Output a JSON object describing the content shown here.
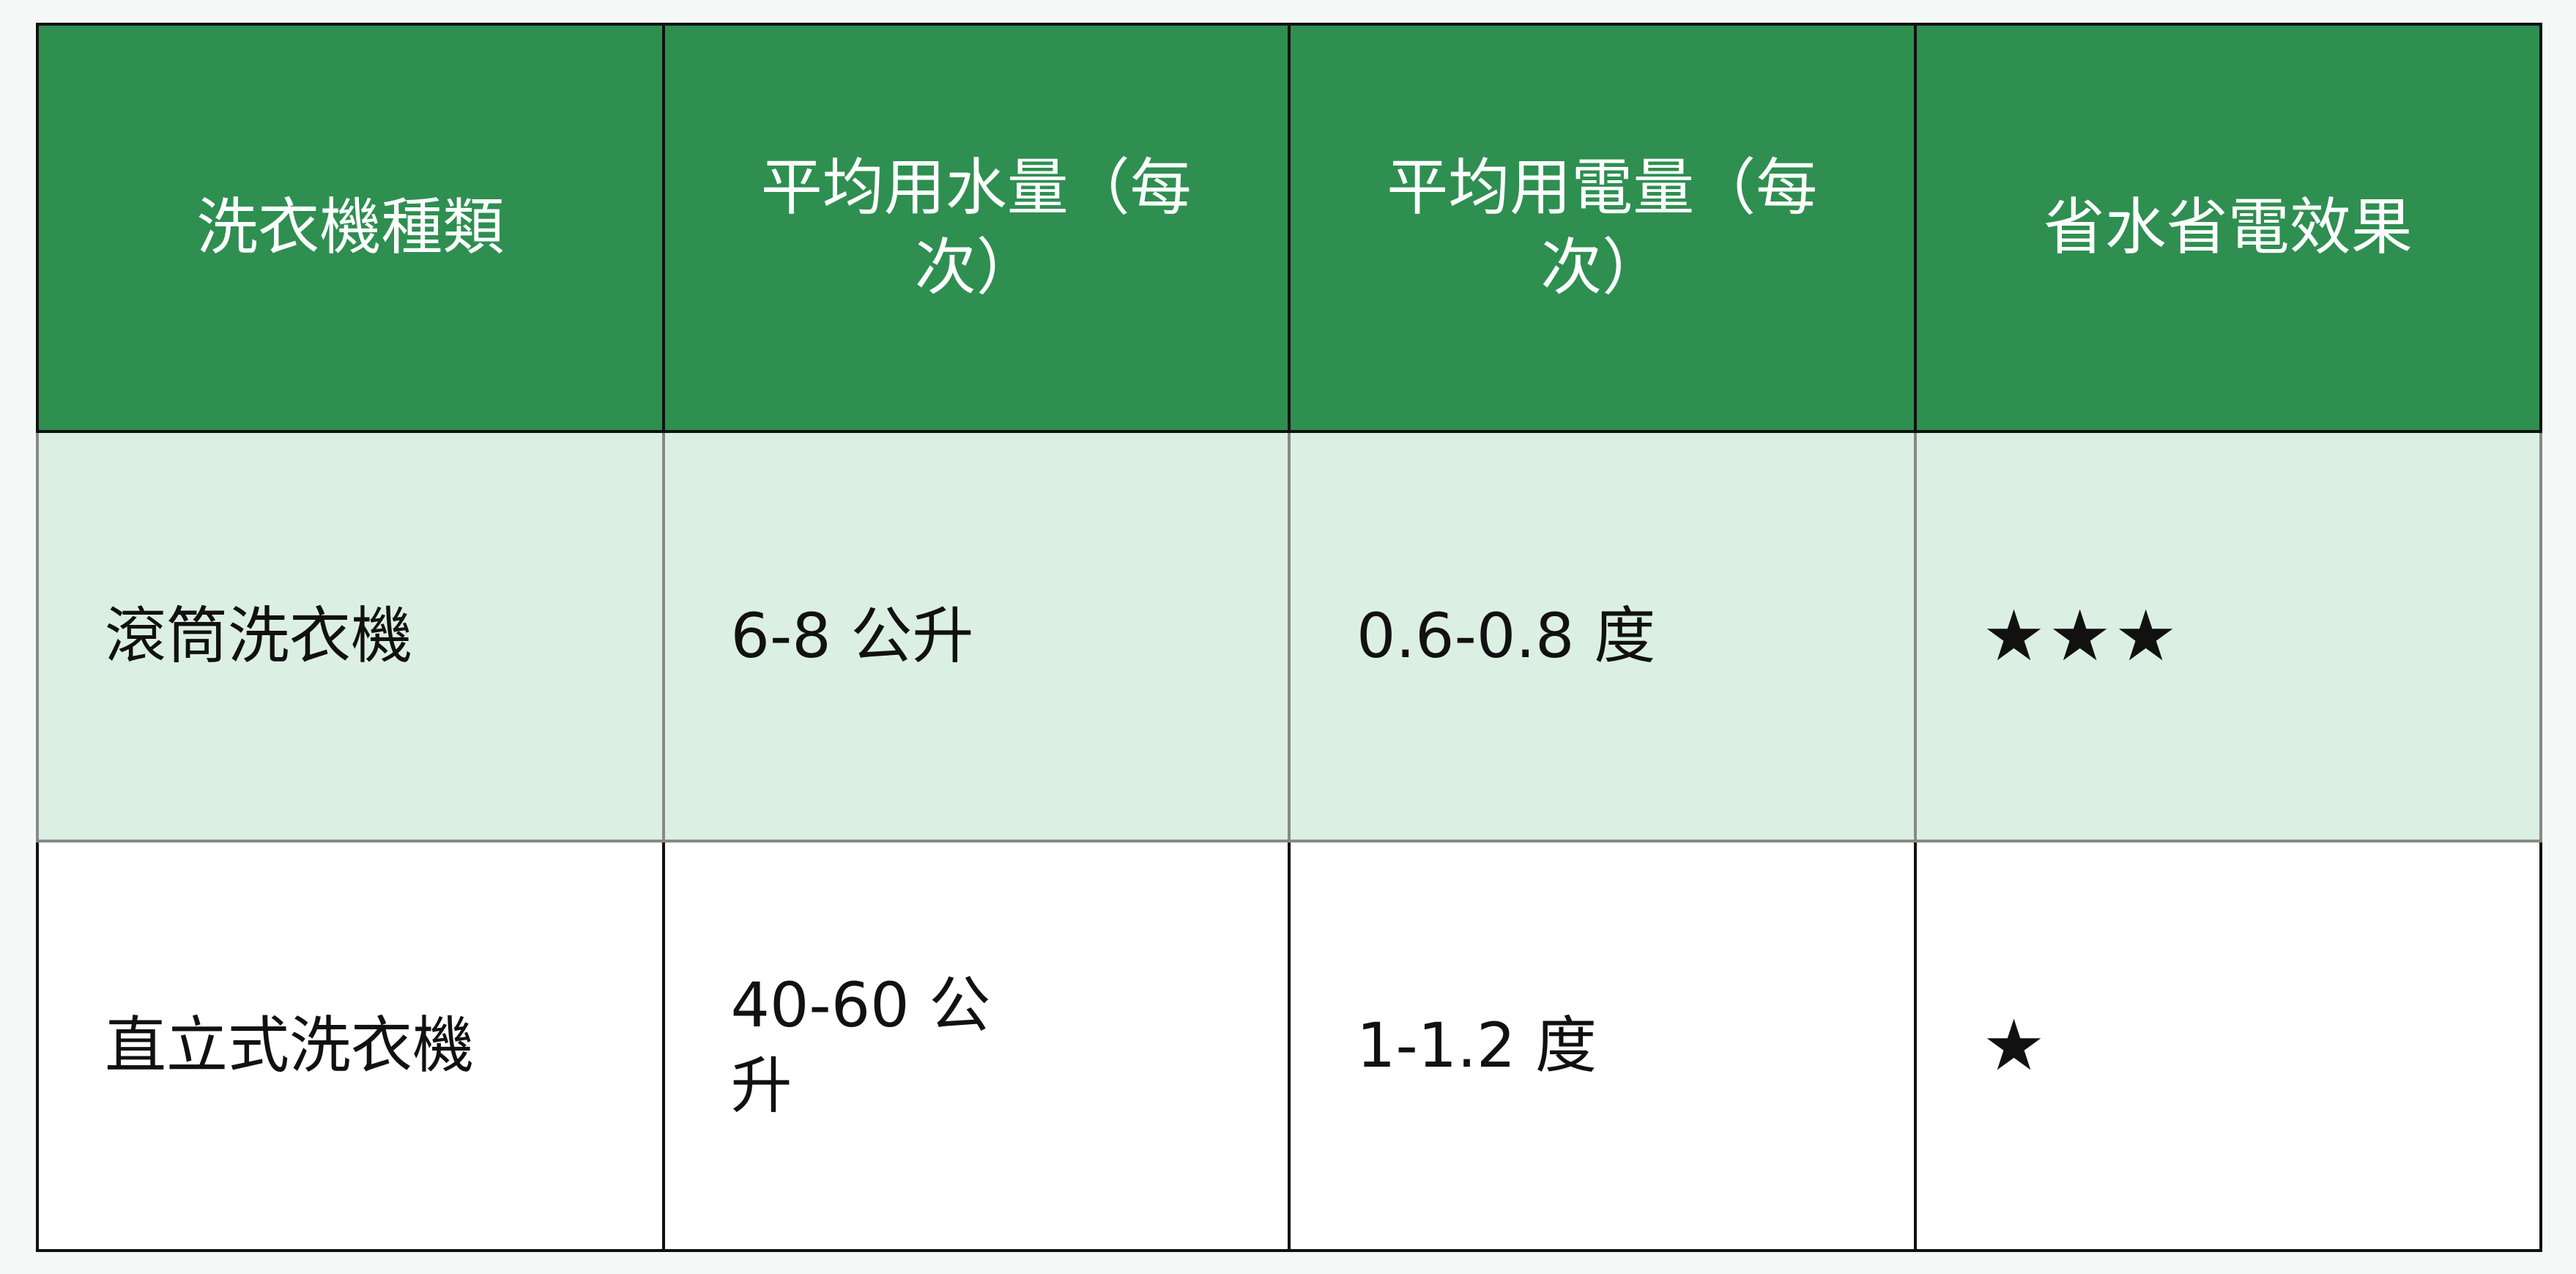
{
  "table": {
    "headers": [
      "洗衣機種類",
      "平均用水量（每次）",
      "平均用電量（每次）",
      "省水省電效果"
    ],
    "rows": [
      {
        "type": "滾筒洗衣機",
        "water": "6-8 公升",
        "power": "0.6-0.8 度",
        "rating": "★★★",
        "rating_stars": 3
      },
      {
        "type": "直立式洗衣機",
        "water": "40-60 公升",
        "power": "1-1.2 度",
        "rating": "★",
        "rating_stars": 1
      }
    ]
  },
  "colors": {
    "header_bg": "#2e8f50",
    "row_alt_bg": "#dcefe3",
    "header_text": "#ffffff"
  }
}
